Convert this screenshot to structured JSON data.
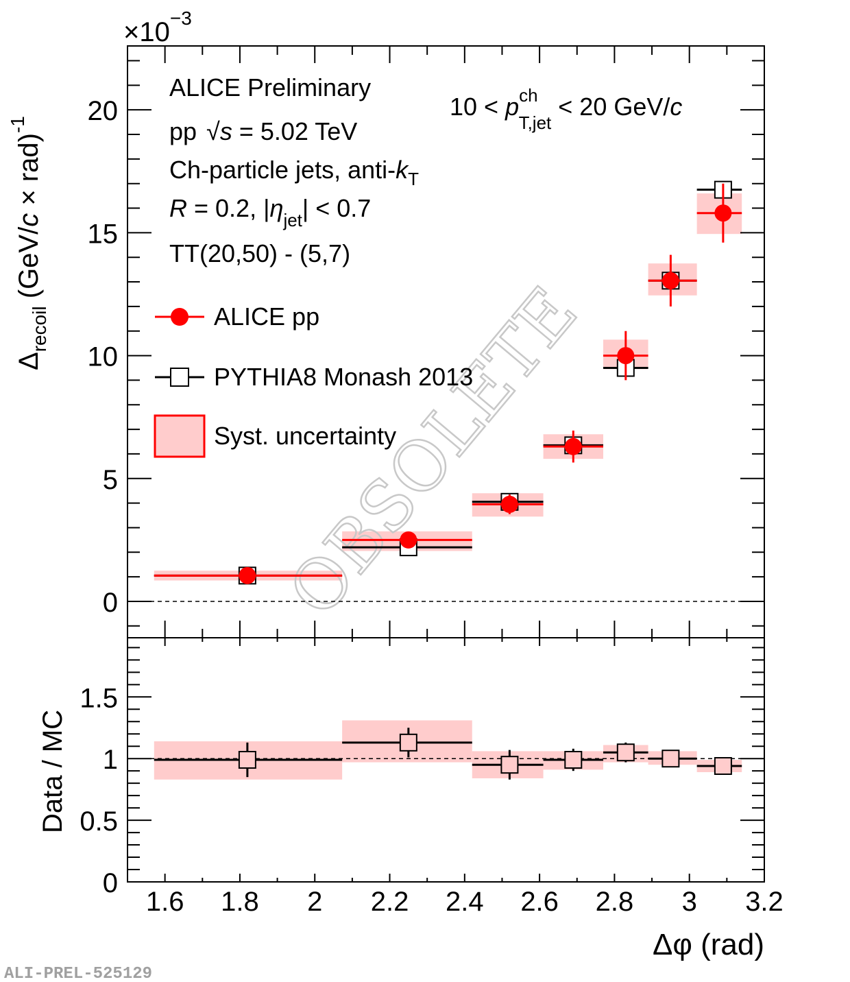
{
  "chart_data": [
    {
      "type": "scatter",
      "panel": "upper",
      "title": "",
      "xlabel": "Δφ (rad)",
      "ylabel": "Δrecoil (GeV/c × rad)^-1",
      "ylabel_parts": {
        "main": "Δ",
        "sub": "recoil",
        "rest": " (GeV/",
        "italic_c": "c",
        "rest2": " × rad)",
        "sup": "-1"
      },
      "y_multiplier": "×10",
      "y_multiplier_exp": "−3",
      "xlim": [
        1.5,
        3.2
      ],
      "ylim": [
        -1.48,
        22.6
      ],
      "yticks": [
        0,
        5,
        10,
        15,
        20
      ],
      "ytick_labels": [
        "0",
        "5",
        "10",
        "15",
        "20"
      ],
      "reference_line": {
        "y": 0,
        "style": "dashed"
      },
      "bins": [
        {
          "x_low": 1.571,
          "x_high": 2.073,
          "x_center": 1.82
        },
        {
          "x_low": 2.073,
          "x_high": 2.42,
          "x_center": 2.25
        },
        {
          "x_low": 2.42,
          "x_high": 2.61,
          "x_center": 2.52
        },
        {
          "x_low": 2.61,
          "x_high": 2.77,
          "x_center": 2.69
        },
        {
          "x_low": 2.77,
          "x_high": 2.89,
          "x_center": 2.83
        },
        {
          "x_low": 2.89,
          "x_high": 3.02,
          "x_center": 2.95
        },
        {
          "x_low": 3.02,
          "x_high": 3.14,
          "x_center": 3.09
        }
      ],
      "series": [
        {
          "name": "ALICE pp",
          "marker": "filled-circle",
          "color": "#ff0000",
          "values": [
            1.05,
            2.5,
            3.95,
            6.3,
            10.0,
            13.05,
            15.8
          ],
          "stat_err": [
            0.15,
            0.15,
            0.4,
            0.65,
            1.0,
            1.05,
            1.2
          ],
          "syst_low": [
            0.85,
            2.05,
            3.45,
            5.8,
            9.45,
            12.45,
            14.95
          ],
          "syst_high": [
            1.25,
            2.85,
            4.4,
            6.8,
            10.65,
            13.75,
            16.6
          ]
        },
        {
          "name": "PYTHIA8 Monash 2013",
          "marker": "open-square",
          "color": "#000000",
          "values": [
            1.05,
            2.2,
            4.05,
            6.35,
            9.5,
            13.05,
            16.75
          ],
          "stat_err": [
            0.05,
            0.05,
            0.05,
            0.05,
            0.05,
            0.05,
            0.05
          ]
        }
      ],
      "legend": {
        "placement": "top-left",
        "entries": [
          {
            "label": "ALICE pp",
            "symbol": "red-line-filled-circle"
          },
          {
            "label": "PYTHIA8 Monash 2013",
            "symbol": "black-line-open-square"
          },
          {
            "label": "Syst. uncertainty",
            "symbol": "pink-box-red-border"
          }
        ]
      },
      "annotations": {
        "experiment": "ALICE Preliminary",
        "system_prefix": "pp",
        "sqrt": "√",
        "s": "s",
        "energy": " = 5.02 TeV",
        "jets_prefix": "Ch-particle jets, anti-",
        "k": "k",
        "k_sub": "T",
        "R": "R",
        "radius_text": " = 0.2, |",
        "eta": "η",
        "eta_sub": "jet",
        "eta_rest": "| < 0.7",
        "trigger": "TT(20,50) - (5,7)",
        "pt_prefix": "10 < ",
        "p": "p",
        "pt_sup": "ch",
        "pt_sub": "T,jet",
        "pt_rest": " < 20 GeV/",
        "pt_c": "c",
        "watermark_stamp": "OBSOLETE"
      }
    },
    {
      "type": "scatter",
      "panel": "lower",
      "xlabel": "Δφ (rad)",
      "ylabel": "Data / MC",
      "xlim": [
        1.5,
        3.2
      ],
      "ylim": [
        0,
        1.98
      ],
      "xticks": [
        1.6,
        1.8,
        2.0,
        2.2,
        2.4,
        2.6,
        2.8,
        3.0,
        3.2
      ],
      "xtick_labels": [
        "1.6",
        "1.8",
        "2",
        "2.2",
        "2.4",
        "2.6",
        "2.8",
        "3",
        "3.2"
      ],
      "yticks": [
        0,
        0.5,
        1,
        1.5
      ],
      "ytick_labels": [
        "0",
        "0.5",
        "1",
        "1.5"
      ],
      "reference_line": {
        "y": 1,
        "style": "dashed"
      },
      "series": [
        {
          "name": "Data / MC",
          "marker": "open-square",
          "color": "#000000",
          "values": [
            0.99,
            1.13,
            0.95,
            0.99,
            1.05,
            1.0,
            0.94
          ],
          "stat_err": [
            0.14,
            0.12,
            0.12,
            0.09,
            0.08,
            0.05,
            0.04
          ],
          "syst_low": [
            0.83,
            0.97,
            0.84,
            0.91,
            0.97,
            0.95,
            0.89
          ],
          "syst_high": [
            1.14,
            1.31,
            1.06,
            1.06,
            1.11,
            1.06,
            0.99
          ]
        }
      ]
    }
  ],
  "footer": {
    "figure_id": "ALI-PREL-525129"
  },
  "colors": {
    "data": "#ff0000",
    "mc": "#000000",
    "syst_fill": "#ffcccc",
    "syst_border": "#ff0000",
    "watermark": "#c8c8c8",
    "figure_id": "#a0a0a0"
  }
}
